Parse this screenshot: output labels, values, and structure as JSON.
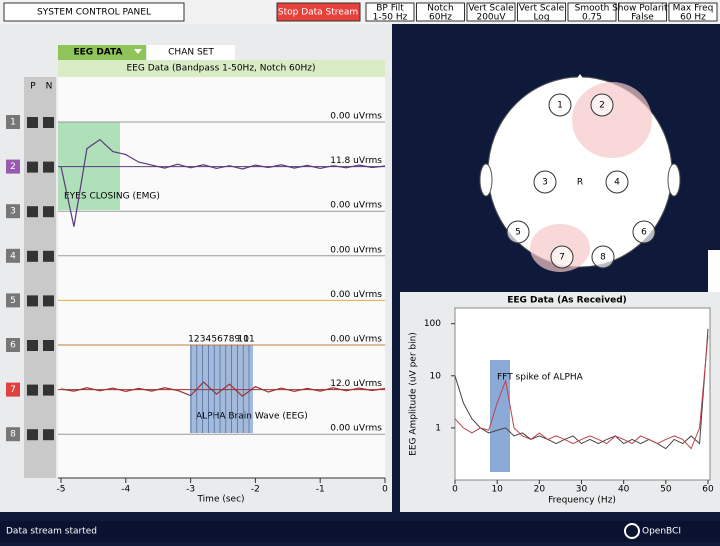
{
  "header": {
    "title": "SYSTEM CONTROL PANEL",
    "stop_button": "Stop Data Stream",
    "settings": [
      {
        "name": "BP Filt",
        "value": "1-50 Hz"
      },
      {
        "name": "Notch",
        "value": "60Hz"
      },
      {
        "name": "Vert Scale",
        "value": "200uV"
      },
      {
        "name": "Vert Scale",
        "value": "Log"
      },
      {
        "name": "Smooth",
        "value": "0.75"
      },
      {
        "name": "Show Polarity",
        "value": "False"
      },
      {
        "name": "Max Freq",
        "value": "60 Hz"
      }
    ]
  },
  "eeg_panel": {
    "tabs": [
      "EEG DATA",
      "CHAN SET"
    ],
    "title": "EEG Data (Bandpass 1-50Hz, Notch 60Hz)",
    "columns": [
      "P",
      "N"
    ],
    "channels": [
      {
        "number": "1",
        "rms": "0.00 uVrms"
      },
      {
        "number": "2",
        "rms": "11.8 uVrms"
      },
      {
        "number": "3",
        "rms": "0.00 uVrms"
      },
      {
        "number": "4",
        "rms": "0.00 uVrms"
      },
      {
        "number": "5",
        "rms": "0.00 uVrms"
      },
      {
        "number": "6",
        "rms": "0.00 uVrms"
      },
      {
        "number": "7",
        "rms": "12.0 uVrms"
      },
      {
        "number": "8",
        "rms": "0.00 uVrms"
      }
    ],
    "annotations": [
      "EYES CLOSING (EMG)",
      "ALPHA Brain Wave (EEG)"
    ],
    "cycle_numbers": [
      "1",
      "2",
      "3",
      "4",
      "5",
      "6",
      "7",
      "8",
      "9",
      "10",
      "11"
    ],
    "xlabel": "Time (sec)",
    "xlim": [
      -5,
      0
    ],
    "xticks": [
      -5,
      -4,
      -3,
      -2,
      -1,
      0
    ],
    "time": [
      -5,
      -4.8,
      -4.6,
      -4.4,
      -4.2,
      -4,
      -3.8,
      -3.6,
      -3.4,
      -3.2,
      -3,
      -2.8,
      -2.6,
      -2.4,
      -2.2,
      -2,
      -1.8,
      -1.6,
      -1.4,
      -1.2,
      -1,
      -0.8,
      -0.6,
      -0.4,
      -0.2,
      0
    ],
    "traces": [
      {
        "channel": "2",
        "color": "#5a3a7a",
        "values": [
          0,
          -200,
          60,
          90,
          50,
          40,
          15,
          5,
          -5,
          8,
          -4,
          6,
          -6,
          3,
          -8,
          5,
          -3,
          6,
          -5,
          4,
          -6,
          3,
          -4,
          5,
          -3,
          2
        ]
      },
      {
        "channel": "7",
        "color": "#a03030",
        "values": [
          2,
          -5,
          6,
          -4,
          5,
          -6,
          4,
          -5,
          6,
          -3,
          -20,
          25,
          -15,
          18,
          -22,
          10,
          -8,
          5,
          -6,
          4,
          -5,
          6,
          -4,
          5,
          -3,
          4
        ]
      }
    ]
  },
  "head_plot": {
    "electrodes": [
      "1",
      "2",
      "3",
      "4",
      "5",
      "6",
      "7",
      "8"
    ],
    "reference": "R"
  },
  "chart_data": {
    "type": "line",
    "title": "EEG Data (As Received)",
    "xlabel": "Frequency (Hz)",
    "ylabel": "EEG Amplitude (uV per bin)",
    "annotation": "FFT spike of ALPHA",
    "log_y": true,
    "x": [
      0,
      2,
      4,
      6,
      8,
      10,
      12,
      14,
      16,
      18,
      20,
      22,
      24,
      26,
      28,
      30,
      32,
      34,
      36,
      38,
      40,
      42,
      44,
      46,
      48,
      50,
      52,
      54,
      56,
      58,
      60
    ],
    "series": [
      {
        "color": "#444444",
        "values": [
          10,
          3,
          1.5,
          1,
          0.8,
          0.9,
          1,
          0.7,
          0.8,
          0.6,
          0.7,
          0.6,
          0.5,
          0.6,
          0.7,
          0.5,
          0.6,
          0.5,
          0.6,
          0.7,
          0.5,
          0.6,
          0.5,
          0.6,
          0.5,
          0.4,
          0.6,
          0.5,
          0.7,
          0.5,
          80
        ]
      },
      {
        "color": "#c0404a",
        "values": [
          1.5,
          1,
          0.8,
          1,
          0.9,
          3,
          8,
          1,
          0.7,
          0.6,
          0.8,
          0.6,
          0.7,
          0.6,
          0.5,
          0.6,
          0.7,
          0.6,
          0.5,
          0.7,
          0.6,
          0.5,
          0.7,
          0.6,
          0.5,
          0.6,
          0.7,
          0.6,
          0.4,
          1,
          60
        ]
      }
    ],
    "xlim": [
      0,
      60
    ],
    "xticks": [
      0,
      10,
      20,
      30,
      40,
      50,
      60
    ],
    "ylim": [
      0.1,
      200
    ],
    "yticks": [
      1,
      10,
      100
    ]
  },
  "status": "Data stream started",
  "logo": "OpenBCI"
}
